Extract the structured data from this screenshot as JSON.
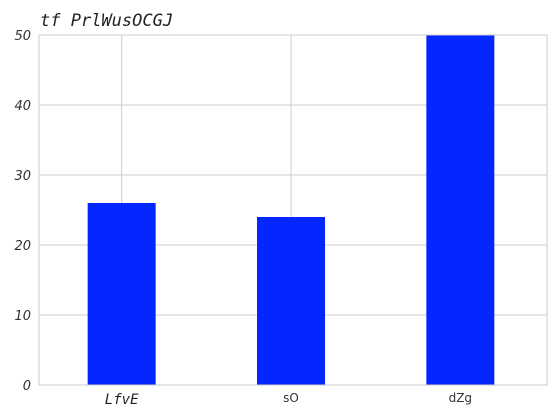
{
  "chart_data": {
    "type": "bar",
    "title": "tf PrlWusOCGJ",
    "categories": [
      "LfvE",
      "sO",
      "dZg"
    ],
    "values": [
      26,
      24,
      50
    ],
    "xlabel": "",
    "ylabel": "",
    "ylim": [
      0,
      50
    ],
    "yticks": [
      0,
      10,
      20,
      30,
      40,
      50
    ],
    "grid": true,
    "bar_color": "#0527ff"
  }
}
